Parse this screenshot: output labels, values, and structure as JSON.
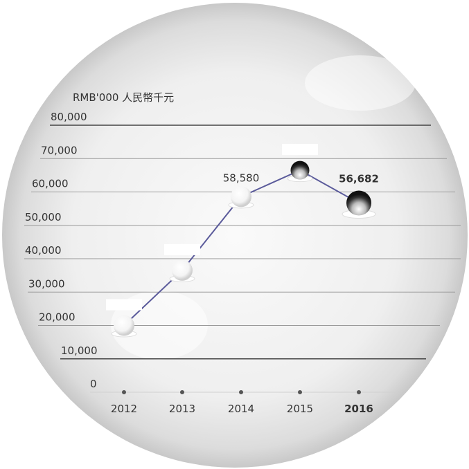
{
  "chart_data": {
    "type": "line",
    "y_label": "RMB'000 人民幣千元",
    "categories": [
      "2012",
      "2013",
      "2014",
      "2015",
      "2016"
    ],
    "series": [
      {
        "name": null,
        "color": "#5b5b9b",
        "values": [
          20000,
          36500,
          58580,
          66500,
          56682
        ],
        "value_labels": [
          null,
          null,
          "58,580",
          null,
          "56,682"
        ]
      }
    ],
    "ylim": [
      0,
      80000
    ],
    "yticks": [
      0,
      {
        "value": 10000,
        "label": "10,000"
      },
      {
        "value": 20000,
        "label": "20,000"
      },
      {
        "value": 30000,
        "label": "30,000"
      },
      {
        "value": 40000,
        "label": "40,000"
      },
      {
        "value": 50000,
        "label": "50,000"
      },
      {
        "value": 60000,
        "label": "60,000"
      },
      {
        "value": 70000,
        "label": "70,000"
      },
      {
        "value": 80000,
        "label": "80,000"
      }
    ],
    "grid": true
  }
}
